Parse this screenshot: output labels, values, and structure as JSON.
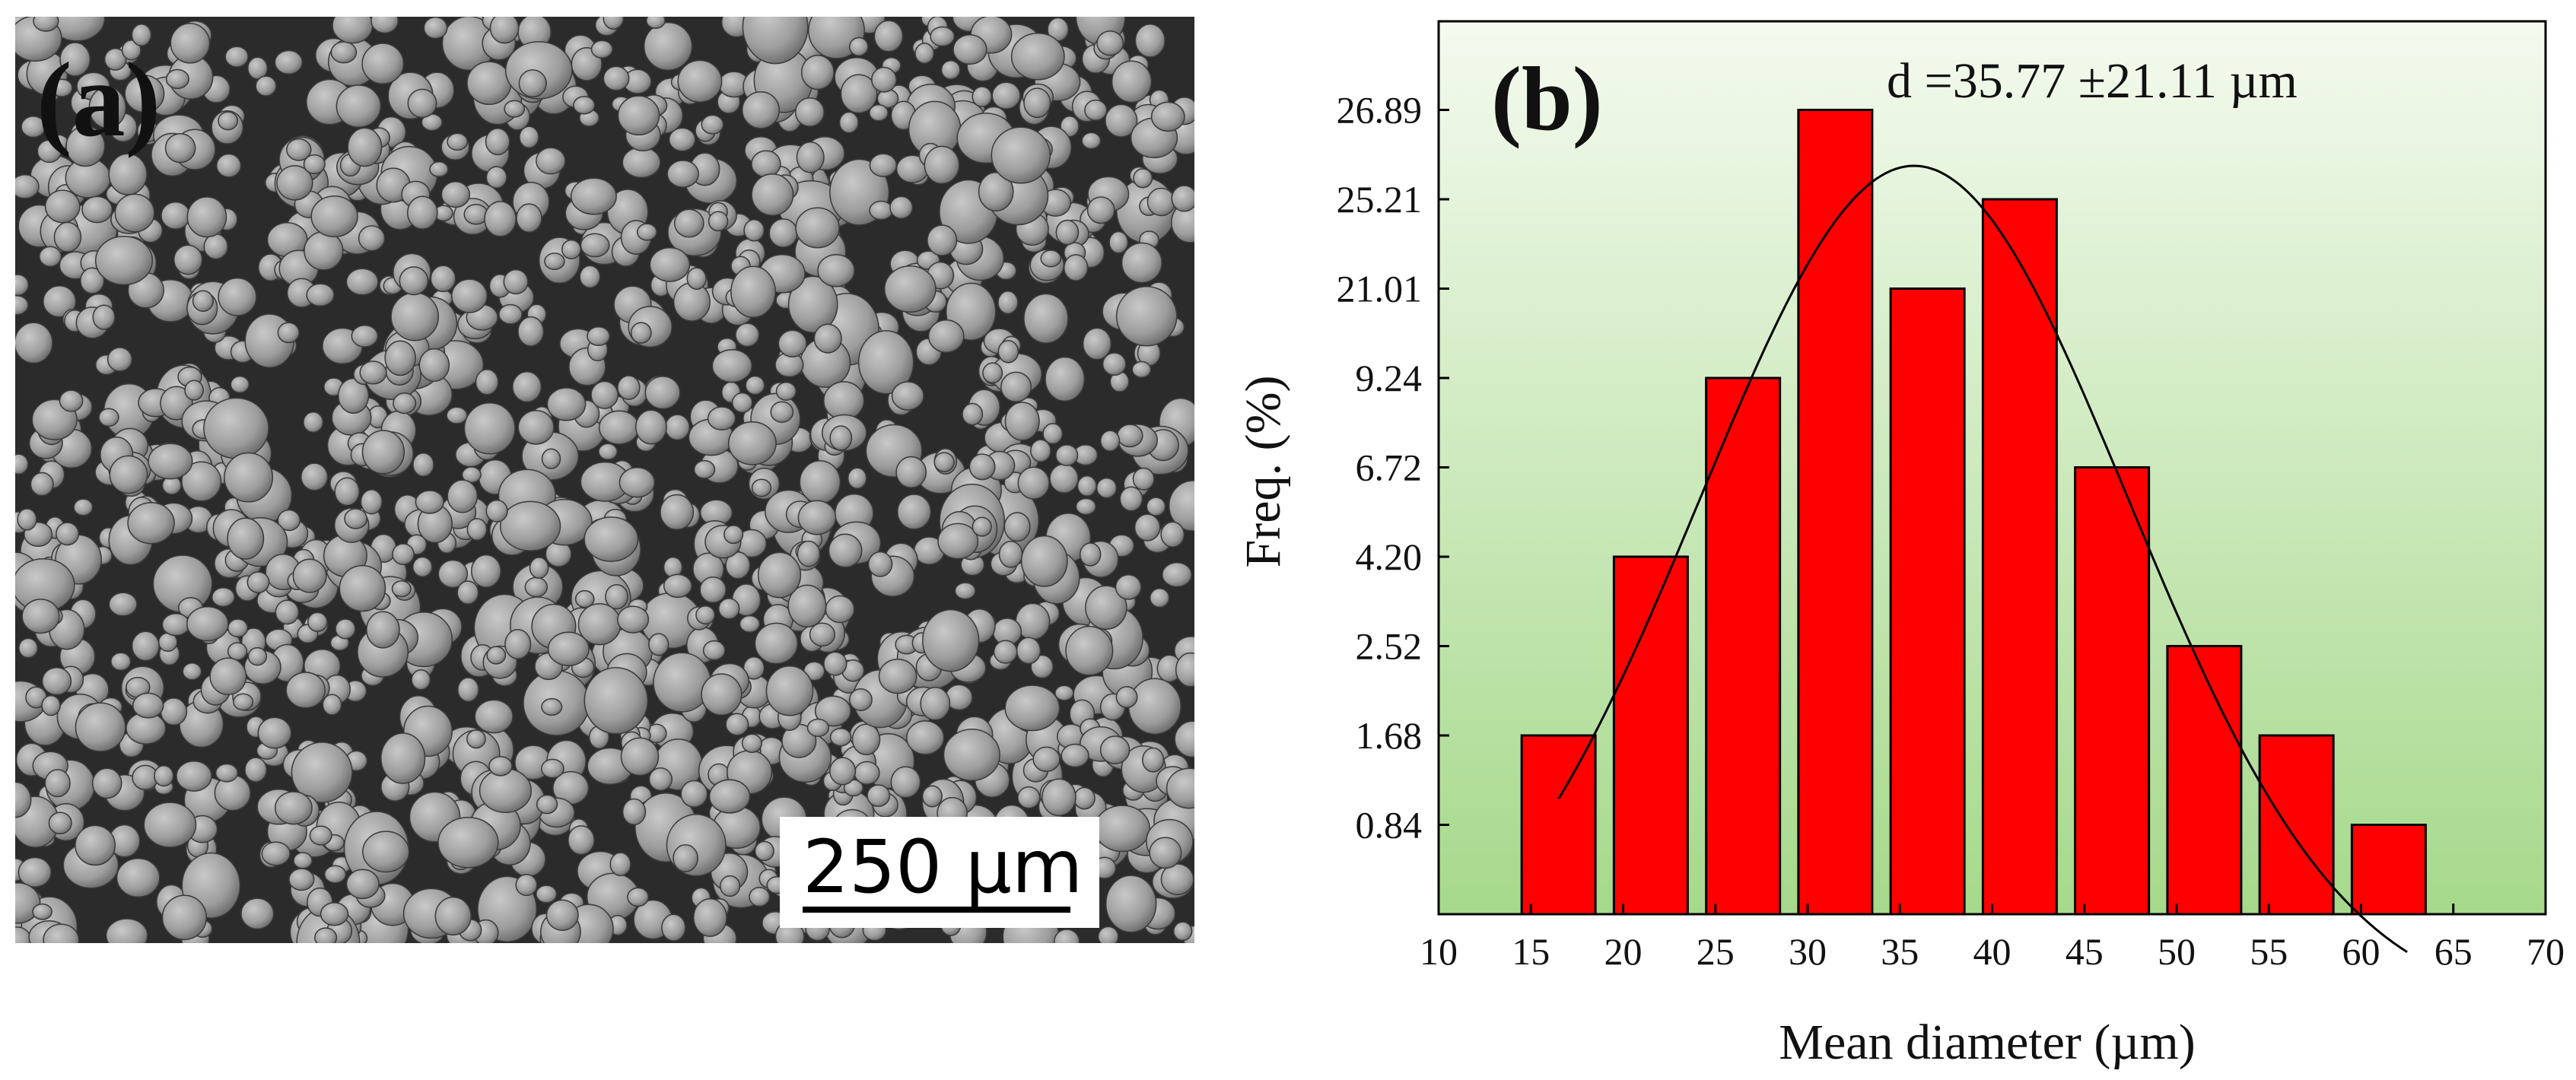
{
  "panel_a": {
    "label": "(a)",
    "scale_bar_text": "250 µm"
  },
  "chart_data": {
    "type": "bar",
    "panel_label": "(b)",
    "annotation": "d =35.77 ±21.11 µm",
    "xlabel": "Mean diameter (µm)",
    "ylabel": "Freq. (%)",
    "xlim": [
      10,
      70
    ],
    "xticks": [
      10,
      15,
      20,
      25,
      30,
      35,
      40,
      45,
      50,
      55,
      60,
      65,
      70
    ],
    "ytick_labels": [
      "0.84",
      "1.68",
      "2.52",
      "4.20",
      "6.72",
      "9.24",
      "21.01",
      "25.21",
      "26.89"
    ],
    "bin_width": 4,
    "categories": [
      "15-20",
      "20-25",
      "25-30",
      "30-35",
      "35-40",
      "40-45",
      "45-50",
      "50-55",
      "55-60",
      "60-65"
    ],
    "bin_centers": [
      16.5,
      21.5,
      26.5,
      31.5,
      36.5,
      41.5,
      46.5,
      51.5,
      56.5,
      61.5
    ],
    "values": [
      1.68,
      4.2,
      9.24,
      26.89,
      21.01,
      25.21,
      6.72,
      2.52,
      1.68,
      0.84
    ],
    "fit": {
      "type": "normal",
      "mean": 35.77,
      "x_range": [
        16.5,
        62.5
      ]
    },
    "colors": {
      "bar": "#ff0000",
      "bar_edge": "#000000",
      "bg_top": "#f4faef",
      "bg_bottom": "#a6d98b",
      "fit_line": "#000000"
    }
  }
}
